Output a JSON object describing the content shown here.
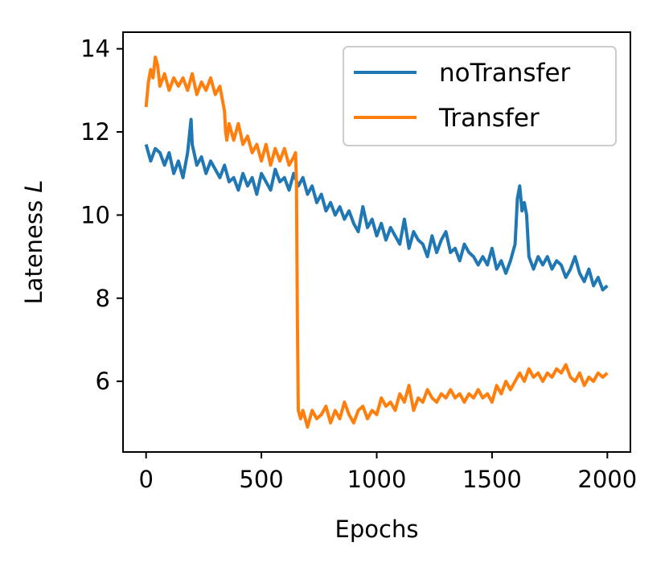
{
  "chart_data": {
    "type": "line",
    "title": "",
    "xlabel": "Epochs",
    "ylabel": "Lateness",
    "ylabel_symbol": "L",
    "xlim": [
      -100,
      2100
    ],
    "ylim": [
      4.3,
      14.4
    ],
    "xticks": [
      0,
      500,
      1000,
      1500,
      2000
    ],
    "yticks": [
      6,
      8,
      10,
      12,
      14
    ],
    "grid": false,
    "legend_position": "top-right",
    "series": [
      {
        "name": "noTransfer",
        "color": "#1f77b4",
        "x": [
          0,
          20,
          40,
          60,
          80,
          100,
          120,
          140,
          160,
          180,
          195,
          200,
          220,
          240,
          260,
          280,
          300,
          320,
          340,
          360,
          380,
          400,
          420,
          440,
          460,
          480,
          500,
          520,
          540,
          560,
          580,
          600,
          620,
          640,
          660,
          680,
          700,
          720,
          740,
          760,
          780,
          800,
          820,
          840,
          860,
          880,
          900,
          920,
          940,
          960,
          980,
          1000,
          1020,
          1040,
          1060,
          1080,
          1100,
          1120,
          1140,
          1160,
          1180,
          1200,
          1220,
          1240,
          1260,
          1280,
          1300,
          1320,
          1340,
          1360,
          1380,
          1400,
          1420,
          1440,
          1460,
          1480,
          1500,
          1520,
          1540,
          1560,
          1580,
          1600,
          1610,
          1620,
          1630,
          1640,
          1650,
          1660,
          1680,
          1700,
          1720,
          1740,
          1760,
          1780,
          1800,
          1820,
          1840,
          1860,
          1880,
          1900,
          1920,
          1940,
          1960,
          1980,
          2000
        ],
        "y": [
          11.7,
          11.3,
          11.6,
          11.5,
          11.2,
          11.5,
          11.0,
          11.3,
          10.9,
          11.5,
          12.3,
          11.7,
          11.2,
          11.4,
          11.0,
          11.3,
          11.1,
          10.9,
          11.2,
          10.8,
          10.9,
          10.6,
          11.0,
          10.7,
          10.9,
          10.5,
          11.0,
          10.8,
          10.6,
          11.1,
          10.8,
          10.9,
          10.6,
          11.0,
          10.7,
          10.9,
          10.5,
          10.7,
          10.3,
          10.5,
          10.1,
          10.3,
          10.0,
          10.2,
          9.9,
          10.1,
          9.8,
          9.6,
          10.2,
          9.7,
          9.9,
          9.5,
          9.8,
          9.4,
          9.7,
          9.5,
          9.3,
          9.9,
          9.2,
          9.6,
          9.4,
          9.3,
          9.0,
          9.5,
          9.1,
          9.4,
          9.6,
          9.1,
          9.2,
          8.9,
          9.3,
          9.1,
          9.0,
          8.8,
          9.0,
          8.8,
          9.2,
          8.7,
          8.9,
          8.6,
          8.9,
          9.3,
          10.4,
          10.7,
          10.1,
          10.3,
          10.0,
          9.0,
          8.7,
          9.0,
          8.8,
          9.0,
          8.7,
          8.9,
          8.8,
          8.5,
          8.7,
          9.0,
          8.6,
          8.4,
          8.7,
          8.3,
          8.5,
          8.2,
          8.3
        ]
      },
      {
        "name": "Transfer",
        "color": "#ff7f0e",
        "x": [
          0,
          10,
          20,
          30,
          40,
          50,
          60,
          80,
          100,
          120,
          140,
          160,
          180,
          200,
          220,
          240,
          260,
          280,
          300,
          320,
          340,
          345,
          350,
          360,
          380,
          400,
          420,
          440,
          460,
          480,
          500,
          520,
          540,
          560,
          580,
          600,
          620,
          640,
          648,
          652,
          656,
          660,
          670,
          680,
          700,
          720,
          740,
          760,
          780,
          800,
          820,
          840,
          860,
          880,
          900,
          920,
          940,
          960,
          980,
          1000,
          1020,
          1040,
          1060,
          1080,
          1100,
          1120,
          1140,
          1160,
          1180,
          1200,
          1220,
          1240,
          1260,
          1280,
          1300,
          1320,
          1340,
          1360,
          1380,
          1400,
          1420,
          1440,
          1460,
          1480,
          1500,
          1520,
          1540,
          1560,
          1580,
          1600,
          1620,
          1640,
          1660,
          1680,
          1700,
          1720,
          1740,
          1760,
          1780,
          1800,
          1820,
          1840,
          1860,
          1880,
          1900,
          1920,
          1940,
          1960,
          1980,
          2000
        ],
        "y": [
          12.6,
          13.2,
          13.5,
          13.3,
          13.8,
          13.6,
          13.1,
          13.4,
          13.0,
          13.3,
          13.1,
          13.3,
          13.0,
          13.4,
          12.9,
          13.2,
          13.0,
          13.3,
          12.9,
          13.1,
          12.5,
          12.0,
          11.8,
          12.2,
          11.8,
          12.2,
          11.7,
          11.9,
          11.5,
          11.7,
          11.3,
          11.7,
          11.2,
          11.6,
          11.3,
          11.6,
          11.2,
          11.4,
          11.5,
          10.8,
          7.5,
          5.3,
          5.1,
          5.3,
          4.9,
          5.3,
          5.1,
          5.2,
          5.4,
          5.0,
          5.3,
          5.1,
          5.5,
          5.2,
          5.0,
          5.3,
          5.4,
          5.1,
          5.3,
          5.2,
          5.6,
          5.4,
          5.5,
          5.3,
          5.7,
          5.5,
          5.9,
          5.3,
          5.6,
          5.5,
          5.8,
          5.6,
          5.5,
          5.7,
          5.6,
          5.8,
          5.6,
          5.7,
          5.5,
          5.7,
          5.6,
          5.8,
          5.6,
          5.7,
          5.5,
          5.9,
          5.7,
          6.0,
          5.8,
          6.0,
          6.2,
          6.0,
          6.3,
          6.1,
          6.2,
          6.0,
          6.2,
          6.1,
          6.3,
          6.2,
          6.4,
          6.1,
          6.0,
          6.2,
          5.9,
          6.1,
          6.0,
          6.2,
          6.1,
          6.2
        ]
      }
    ]
  }
}
